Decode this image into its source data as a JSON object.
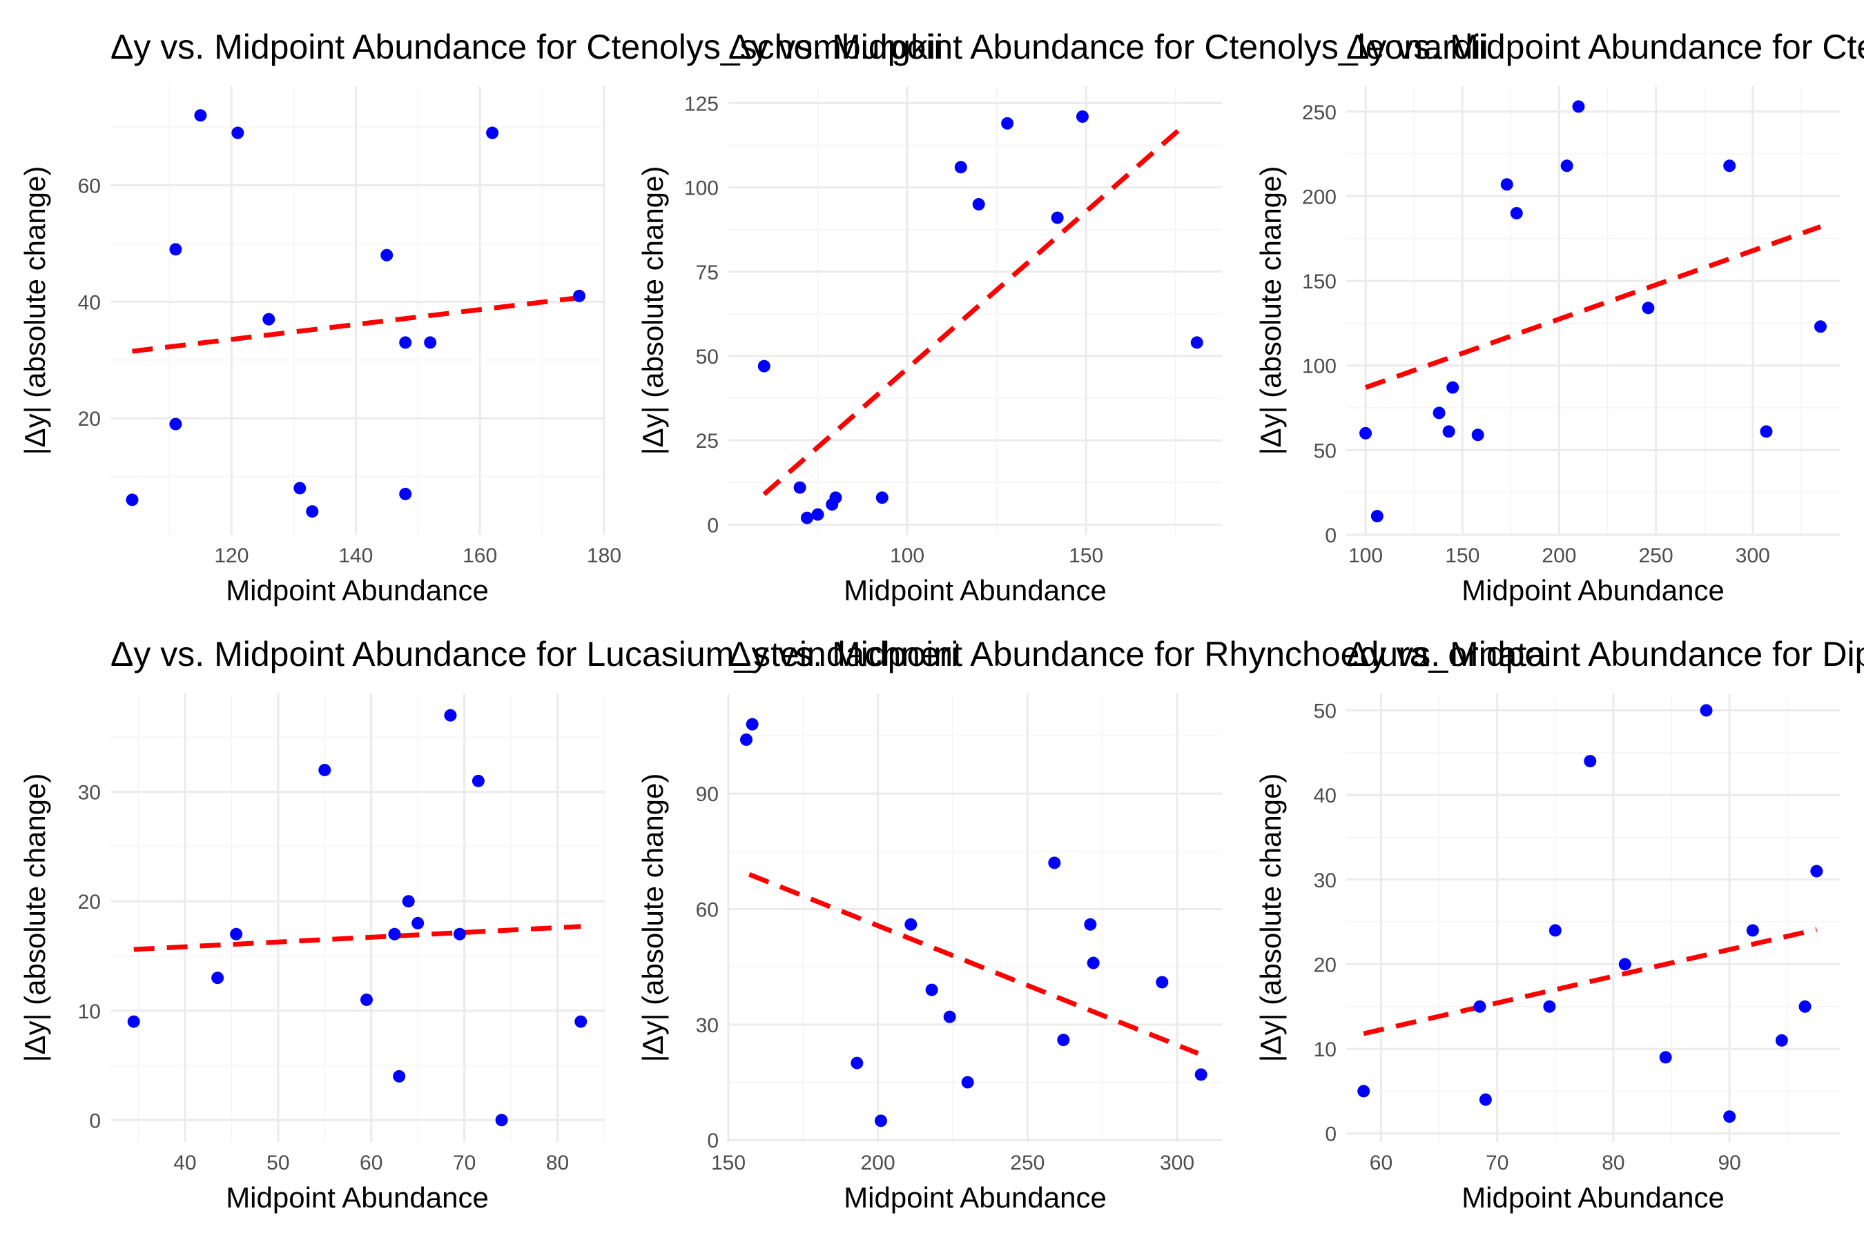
{
  "figure": {
    "background": "#ffffff",
    "point_color": "#0000ff",
    "fit_color": "#ff0000"
  },
  "chart_data": [
    {
      "type": "scatter",
      "title": "Δy vs. Midpoint Abundance for Ctenolys_schomburgkii",
      "xlabel": "Midpoint Abundance",
      "ylabel": "|Δy| (absolute change)",
      "xlim": [
        100.5,
        180
      ],
      "ylim": [
        0,
        77
      ],
      "x_ticks": [
        120,
        140,
        160,
        180
      ],
      "y_ticks": [
        20,
        40,
        60
      ],
      "grid": true,
      "points": [
        {
          "x": 104,
          "y": 6
        },
        {
          "x": 111,
          "y": 49
        },
        {
          "x": 111,
          "y": 19
        },
        {
          "x": 115,
          "y": 72
        },
        {
          "x": 121,
          "y": 69
        },
        {
          "x": 126,
          "y": 37
        },
        {
          "x": 131,
          "y": 8
        },
        {
          "x": 133,
          "y": 4
        },
        {
          "x": 145,
          "y": 48
        },
        {
          "x": 148,
          "y": 33
        },
        {
          "x": 148,
          "y": 7
        },
        {
          "x": 152,
          "y": 33
        },
        {
          "x": 162,
          "y": 69
        },
        {
          "x": 176,
          "y": 41
        }
      ],
      "fit_line": {
        "x": [
          104,
          176
        ],
        "y": [
          31.5,
          40.7
        ]
      }
    },
    {
      "type": "scatter",
      "title": "Δy vs. Midpoint Abundance for Ctenolys_leonardii",
      "xlabel": "Midpoint Abundance",
      "ylabel": "|Δy| (absolute change)",
      "xlim": [
        50,
        188
      ],
      "ylim": [
        -3,
        130
      ],
      "x_ticks": [
        100,
        150
      ],
      "y_ticks": [
        0,
        25,
        50,
        75,
        100,
        125
      ],
      "grid": true,
      "points": [
        {
          "x": 60,
          "y": 47
        },
        {
          "x": 70,
          "y": 11
        },
        {
          "x": 72,
          "y": 2
        },
        {
          "x": 75,
          "y": 3
        },
        {
          "x": 79,
          "y": 6
        },
        {
          "x": 80,
          "y": 8
        },
        {
          "x": 93,
          "y": 8
        },
        {
          "x": 115,
          "y": 106
        },
        {
          "x": 120,
          "y": 95
        },
        {
          "x": 128,
          "y": 119
        },
        {
          "x": 142,
          "y": 91
        },
        {
          "x": 149,
          "y": 121
        },
        {
          "x": 181,
          "y": 54
        }
      ],
      "fit_line": {
        "x": [
          60,
          177
        ],
        "y": [
          9,
          118
        ]
      }
    },
    {
      "type": "scatter",
      "title": "Δy vs. Midpoint Abundance for Ctenolys_cylindrata",
      "xlabel": "Midpoint Abundance",
      "ylabel": "|Δy| (absolute change)",
      "xlim": [
        90,
        345
      ],
      "ylim": [
        0,
        265
      ],
      "x_ticks": [
        100,
        150,
        200,
        250,
        300
      ],
      "y_ticks": [
        0,
        50,
        100,
        150,
        200,
        250
      ],
      "grid": true,
      "points": [
        {
          "x": 100,
          "y": 60
        },
        {
          "x": 106,
          "y": 11
        },
        {
          "x": 138,
          "y": 72
        },
        {
          "x": 143,
          "y": 61
        },
        {
          "x": 145,
          "y": 87
        },
        {
          "x": 158,
          "y": 59
        },
        {
          "x": 173,
          "y": 207
        },
        {
          "x": 178,
          "y": 190
        },
        {
          "x": 204,
          "y": 218
        },
        {
          "x": 210,
          "y": 253
        },
        {
          "x": 246,
          "y": 134
        },
        {
          "x": 288,
          "y": 218
        },
        {
          "x": 307,
          "y": 61
        },
        {
          "x": 335,
          "y": 123
        }
      ],
      "fit_line": {
        "x": [
          100,
          335
        ],
        "y": [
          87,
          182
        ]
      }
    },
    {
      "type": "scatter",
      "title": "Δy vs. Midpoint Abundance for Lucasium_steindachneri",
      "xlabel": "Midpoint Abundance",
      "ylabel": "|Δy| (absolute change)",
      "xlim": [
        32,
        85
      ],
      "ylim": [
        -2,
        39
      ],
      "x_ticks": [
        40,
        50,
        60,
        70,
        80
      ],
      "y_ticks": [
        0,
        10,
        20,
        30
      ],
      "grid": true,
      "points": [
        {
          "x": 34.5,
          "y": 9
        },
        {
          "x": 43.5,
          "y": 13
        },
        {
          "x": 45.5,
          "y": 17
        },
        {
          "x": 55,
          "y": 32
        },
        {
          "x": 59.5,
          "y": 11
        },
        {
          "x": 62.5,
          "y": 17
        },
        {
          "x": 63,
          "y": 4
        },
        {
          "x": 64,
          "y": 20
        },
        {
          "x": 65,
          "y": 18
        },
        {
          "x": 68.5,
          "y": 37
        },
        {
          "x": 69.5,
          "y": 17
        },
        {
          "x": 71.5,
          "y": 31
        },
        {
          "x": 74,
          "y": 0
        },
        {
          "x": 82.5,
          "y": 9
        }
      ],
      "fit_line": {
        "x": [
          34.5,
          82.5
        ],
        "y": [
          15.6,
          17.7
        ]
      }
    },
    {
      "type": "scatter",
      "title": "Δy vs. Midpoint Abundance for Rhynchoedura_ornata",
      "xlabel": "Midpoint Abundance",
      "ylabel": "|Δy| (absolute change)",
      "xlim": [
        150,
        315
      ],
      "ylim": [
        -0.5,
        116
      ],
      "x_ticks": [
        150,
        200,
        250,
        300
      ],
      "y_ticks": [
        0,
        30,
        60,
        90
      ],
      "grid": true,
      "points": [
        {
          "x": 156,
          "y": 104
        },
        {
          "x": 158,
          "y": 108
        },
        {
          "x": 193,
          "y": 20
        },
        {
          "x": 201,
          "y": 5
        },
        {
          "x": 211,
          "y": 56
        },
        {
          "x": 218,
          "y": 39
        },
        {
          "x": 224,
          "y": 32
        },
        {
          "x": 230,
          "y": 15
        },
        {
          "x": 259,
          "y": 72
        },
        {
          "x": 262,
          "y": 26
        },
        {
          "x": 271,
          "y": 56
        },
        {
          "x": 272,
          "y": 46
        },
        {
          "x": 295,
          "y": 41
        },
        {
          "x": 308,
          "y": 17
        }
      ],
      "fit_line": {
        "x": [
          157,
          307
        ],
        "y": [
          69,
          22.5
        ]
      }
    },
    {
      "type": "scatter",
      "title": "Δy vs. Midpoint Abundance for Diplodactylus_conspicillatus",
      "xlabel": "Midpoint Abundance",
      "ylabel": "|Δy| (absolute change)",
      "xlim": [
        57,
        99.5
      ],
      "ylim": [
        -1,
        52
      ],
      "x_ticks": [
        60,
        70,
        80,
        90
      ],
      "y_ticks": [
        0,
        10,
        20,
        30,
        40,
        50
      ],
      "grid": true,
      "points": [
        {
          "x": 58.5,
          "y": 5
        },
        {
          "x": 68.5,
          "y": 15
        },
        {
          "x": 69,
          "y": 4
        },
        {
          "x": 74.5,
          "y": 15
        },
        {
          "x": 75,
          "y": 24
        },
        {
          "x": 78,
          "y": 44
        },
        {
          "x": 81,
          "y": 20
        },
        {
          "x": 84.5,
          "y": 9
        },
        {
          "x": 88,
          "y": 50
        },
        {
          "x": 90,
          "y": 2
        },
        {
          "x": 92,
          "y": 24
        },
        {
          "x": 94.5,
          "y": 11
        },
        {
          "x": 96.5,
          "y": 15
        },
        {
          "x": 97.5,
          "y": 31
        }
      ],
      "fit_line": {
        "x": [
          58.5,
          97.5
        ],
        "y": [
          11.8,
          24.1
        ]
      }
    }
  ]
}
